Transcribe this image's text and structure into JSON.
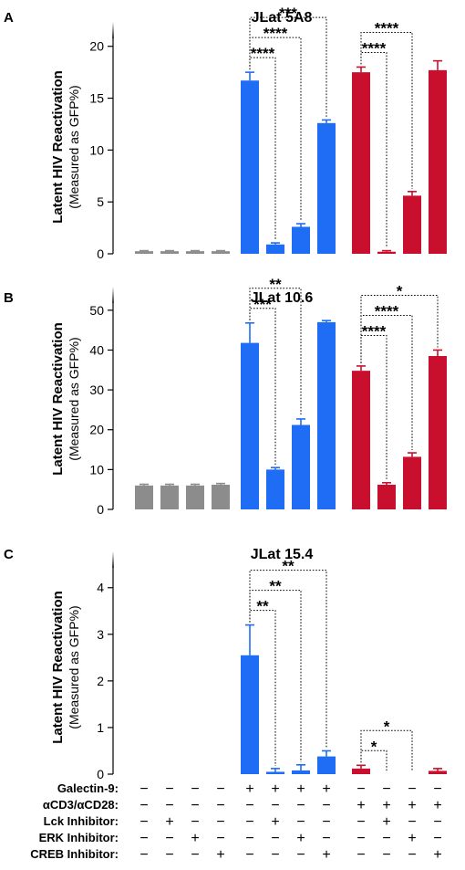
{
  "colors": {
    "gray": "#8c8c8c",
    "blue": "#1f6cf5",
    "red": "#c8102e"
  },
  "chart_data": [
    {
      "type": "bar",
      "panel": "A",
      "title": "JLat 5A8",
      "ylabel_line1": "Latent HIV Reactivation",
      "ylabel_line2": "(Measured as GFP%)",
      "ylim": [
        0,
        22
      ],
      "yticks": [
        0,
        5,
        10,
        15,
        20
      ],
      "values": [
        0.25,
        0.25,
        0.25,
        0.25,
        16.7,
        0.9,
        2.6,
        12.6,
        17.5,
        0.2,
        5.6,
        17.7
      ],
      "errors": [
        0.05,
        0.05,
        0.05,
        0.05,
        0.8,
        0.15,
        0.3,
        0.3,
        0.5,
        0.1,
        0.4,
        0.9
      ],
      "groups": [
        "gray",
        "gray",
        "gray",
        "gray",
        "blue",
        "blue",
        "blue",
        "blue",
        "red",
        "red",
        "red",
        "red"
      ],
      "comparisons": [
        {
          "from": 4,
          "to": 5,
          "label": "****"
        },
        {
          "from": 4,
          "to": 6,
          "label": "****"
        },
        {
          "from": 4,
          "to": 7,
          "label": "***"
        },
        {
          "from": 8,
          "to": 9,
          "label": "****"
        },
        {
          "from": 8,
          "to": 10,
          "label": "****"
        }
      ]
    },
    {
      "type": "bar",
      "panel": "B",
      "title": "JLat 10.6",
      "ylabel_line1": "Latent HIV Reactivation",
      "ylabel_line2": "(Measured as GFP%)",
      "ylim": [
        0,
        55
      ],
      "yticks": [
        0,
        10,
        20,
        30,
        40,
        50
      ],
      "values": [
        6.0,
        6.0,
        6.0,
        6.2,
        41.8,
        10.0,
        21.2,
        47.0,
        34.8,
        6.2,
        13.2,
        38.5
      ],
      "errors": [
        0.3,
        0.3,
        0.3,
        0.3,
        5.0,
        0.5,
        1.5,
        0.4,
        1.2,
        0.5,
        1.0,
        1.5
      ],
      "groups": [
        "gray",
        "gray",
        "gray",
        "gray",
        "blue",
        "blue",
        "blue",
        "blue",
        "red",
        "red",
        "red",
        "red"
      ],
      "comparisons": [
        {
          "from": 4,
          "to": 5,
          "label": "***"
        },
        {
          "from": 4,
          "to": 6,
          "label": "**"
        },
        {
          "from": 8,
          "to": 9,
          "label": "****"
        },
        {
          "from": 8,
          "to": 10,
          "label": "****"
        },
        {
          "from": 8,
          "to": 11,
          "label": "*"
        }
      ]
    },
    {
      "type": "bar",
      "panel": "C",
      "title": "JLat 15.4",
      "ylabel_line1": "Latent HIV Reactivation",
      "ylabel_line2": "(Measured as GFP%)",
      "ylim": [
        0,
        4.7
      ],
      "yticks": [
        0,
        1,
        2,
        3,
        4
      ],
      "values": [
        0,
        0,
        0,
        0,
        2.55,
        0.05,
        0.08,
        0.38,
        0.12,
        0,
        0,
        0.07
      ],
      "errors": [
        0,
        0,
        0,
        0,
        0.65,
        0.07,
        0.12,
        0.12,
        0.07,
        0,
        0,
        0.05
      ],
      "groups": [
        "gray",
        "gray",
        "gray",
        "gray",
        "blue",
        "blue",
        "blue",
        "blue",
        "red",
        "red",
        "red",
        "red"
      ],
      "comparisons": [
        {
          "from": 4,
          "to": 5,
          "label": "**"
        },
        {
          "from": 4,
          "to": 6,
          "label": "**"
        },
        {
          "from": 4,
          "to": 7,
          "label": "**"
        },
        {
          "from": 8,
          "to": 9,
          "label": "*"
        },
        {
          "from": 8,
          "to": 10,
          "label": "*"
        }
      ]
    }
  ],
  "conditions": [
    {
      "label": "Galectin-9:",
      "marks": [
        "−",
        "−",
        "−",
        "−",
        "+",
        "+",
        "+",
        "+",
        "−",
        "−",
        "−",
        "−"
      ]
    },
    {
      "label": "αCD3/αCD28:",
      "marks": [
        "−",
        "−",
        "−",
        "−",
        "−",
        "−",
        "−",
        "−",
        "+",
        "+",
        "+",
        "+"
      ]
    },
    {
      "label": "Lck Inhibitor:",
      "marks": [
        "−",
        "+",
        "−",
        "−",
        "−",
        "+",
        "−",
        "−",
        "−",
        "+",
        "−",
        "−"
      ]
    },
    {
      "label": "ERK Inhibitor:",
      "marks": [
        "−",
        "−",
        "+",
        "−",
        "−",
        "−",
        "+",
        "−",
        "−",
        "−",
        "+",
        "−"
      ]
    },
    {
      "label": "CREB Inhibitor:",
      "marks": [
        "−",
        "−",
        "−",
        "+",
        "−",
        "−",
        "−",
        "+",
        "−",
        "−",
        "−",
        "+"
      ]
    }
  ]
}
